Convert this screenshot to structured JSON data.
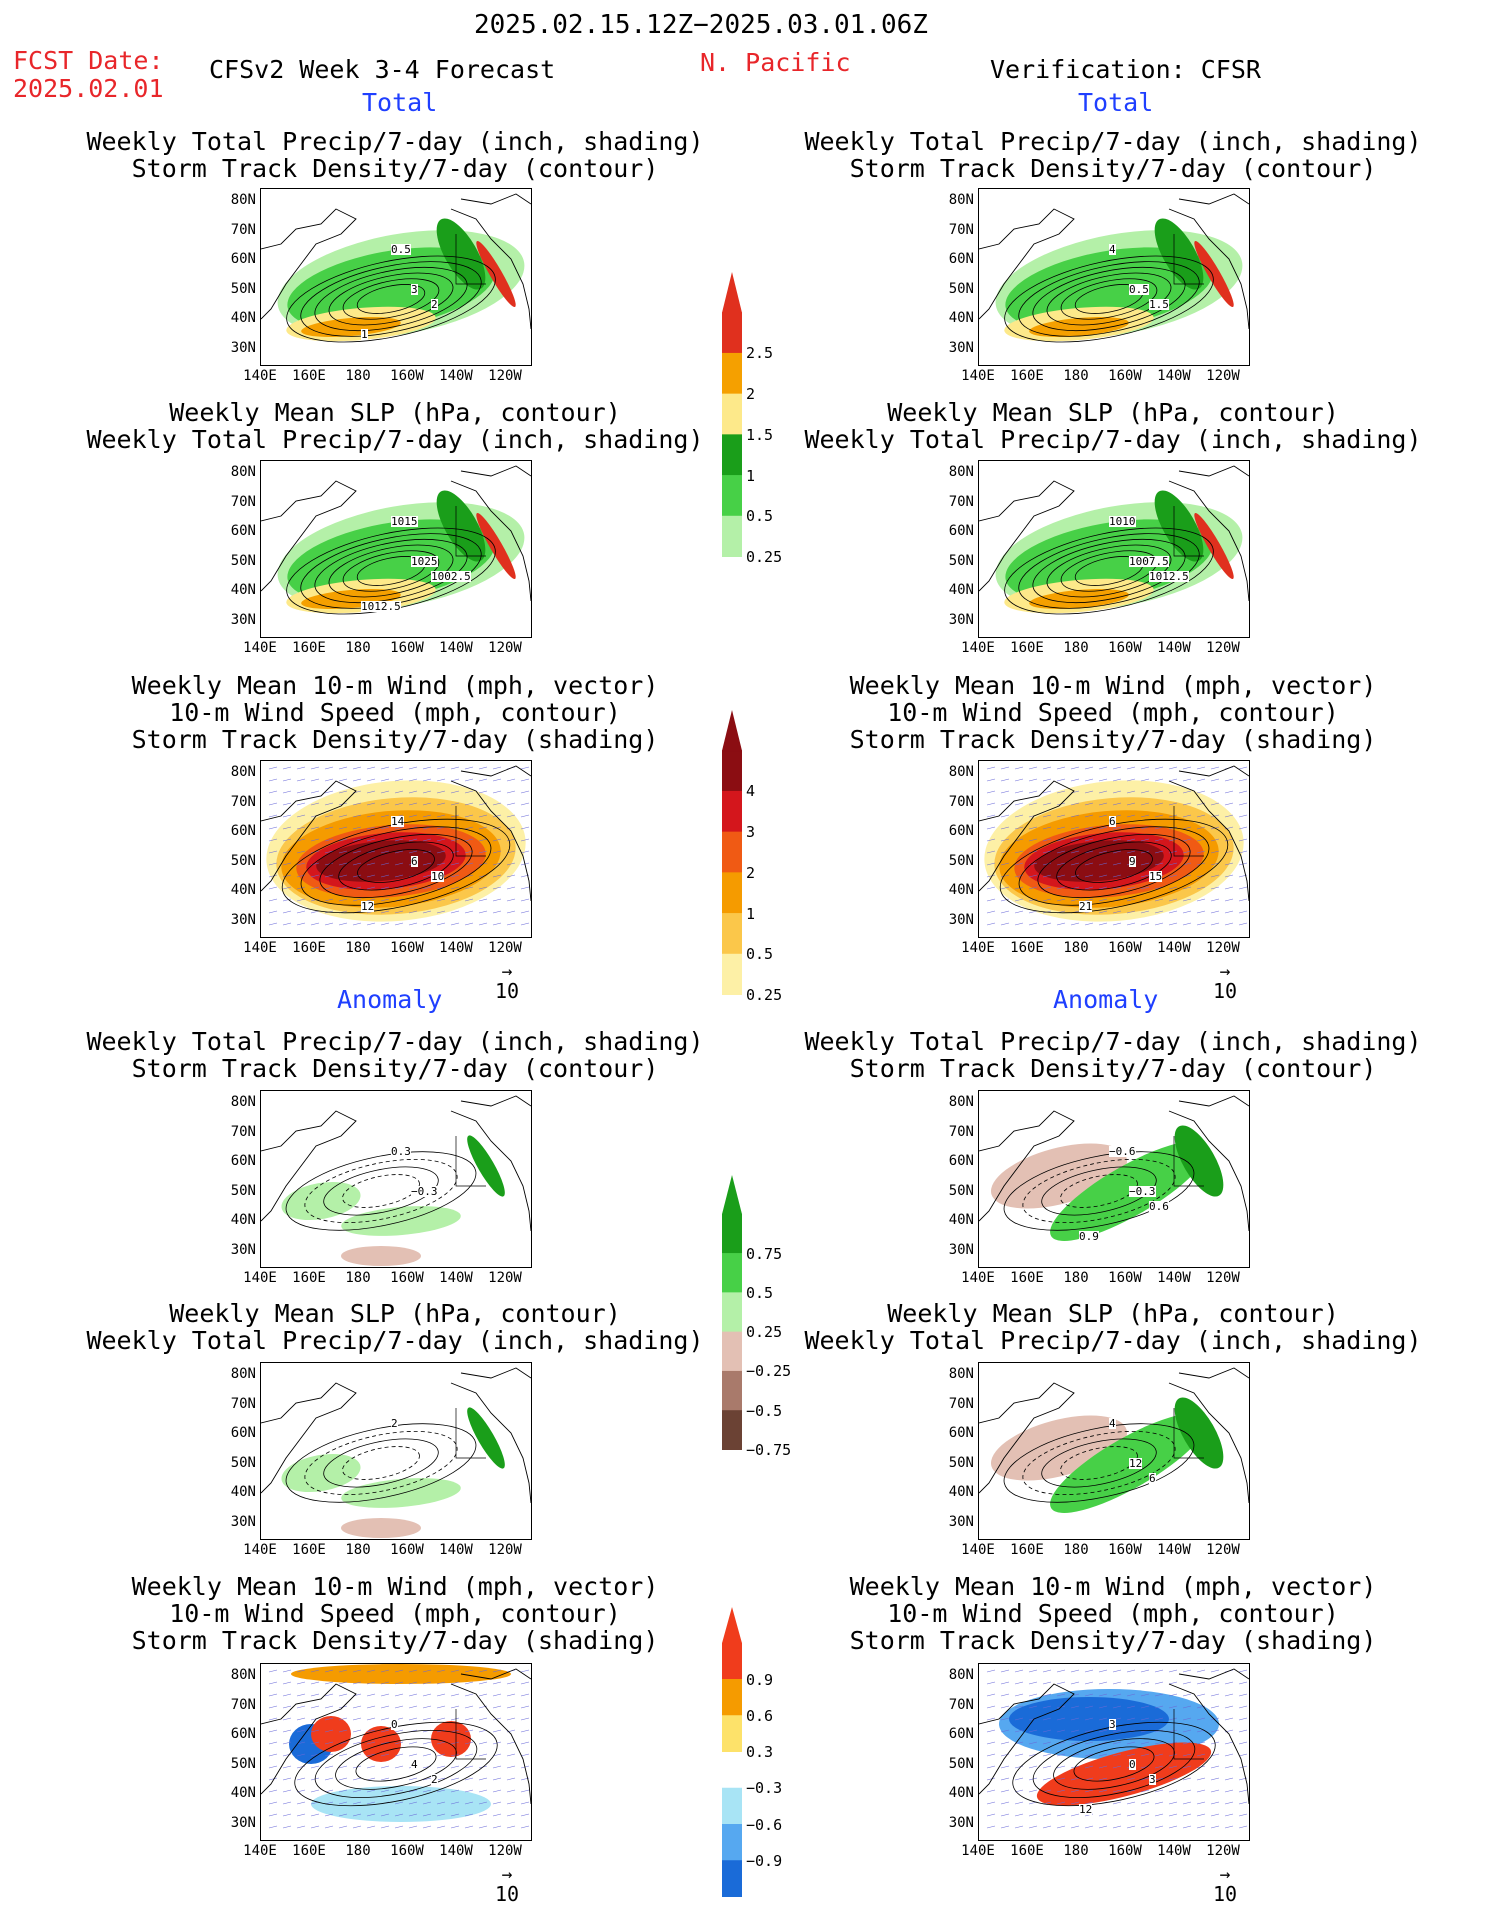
{
  "header": {
    "date_range": "2025.02.15.12Z−2025.03.01.06Z",
    "fcst_label": "FCST Date:",
    "fcst_date": "2025.02.01",
    "model_title": "CFSv2 Week 3-4 Forecast",
    "region": "N. Pacific",
    "verification": "Verification: CFSR"
  },
  "sections": {
    "total": "Total",
    "anomaly": "Anomaly"
  },
  "panel_titles": {
    "precip_storm": [
      "Weekly Total Precip/7-day (inch, shading)",
      "Storm Track Density/7-day (contour)"
    ],
    "slp_precip": [
      "Weekly Mean SLP (hPa, contour)",
      "Weekly Total Precip/7-day (inch, shading)"
    ],
    "wind_storm": [
      "Weekly Mean 10-m Wind (mph, vector)",
      "10-m Wind Speed (mph, contour)",
      "Storm Track Density/7-day (shading)"
    ]
  },
  "axes": {
    "lat": [
      "80N",
      "70N",
      "60N",
      "50N",
      "40N",
      "30N"
    ],
    "lon": [
      "140E",
      "160E",
      "180",
      "160W",
      "140W",
      "120W"
    ]
  },
  "vector_ref": "10",
  "colorbars": {
    "precip_total": {
      "labels": [
        "2.5",
        "2",
        "1.5",
        "1",
        "0.5",
        "0.25"
      ],
      "colors": [
        "#e0301e",
        "#f5a000",
        "#fde98a",
        "#1a9e1a",
        "#47d047",
        "#b4f0a8"
      ]
    },
    "storm_total": {
      "labels": [
        "4",
        "3",
        "2",
        "1",
        "0.5",
        "0.25"
      ],
      "colors": [
        "#8b0d12",
        "#d4161c",
        "#f05a14",
        "#f59b00",
        "#fbc74a",
        "#fdf0a6"
      ]
    },
    "precip_anom": {
      "labels": [
        "0.75",
        "0.5",
        "0.25",
        "−0.25",
        "−0.5",
        "−0.75"
      ],
      "colors": [
        "#1a9e1a",
        "#47d047",
        "#b4f0a8",
        "#e3c0b4",
        "#a97a6b",
        "#6b4234"
      ]
    },
    "storm_anom": {
      "labels": [
        "0.9",
        "0.6",
        "0.3",
        "−0.3",
        "−0.6",
        "−0.9"
      ],
      "colors": [
        "#f03c1c",
        "#f59b00",
        "#fde26a",
        "#ffffff",
        "#a8e4f5",
        "#56a8f0",
        "#1a6bd8"
      ]
    }
  },
  "map_labels": {
    "l1": [
      "0.5",
      "3",
      "2",
      "1"
    ],
    "r1": [
      "4",
      "0.5",
      "1.5"
    ],
    "l2": [
      "1015",
      "1025",
      "1002.5",
      "1012.5"
    ],
    "r2": [
      "1010",
      "1007.5",
      "1012.5"
    ],
    "l3": [
      "14",
      "6",
      "10",
      "12"
    ],
    "r3": [
      "6",
      "9",
      "15",
      "21"
    ],
    "l4": [
      "0.3",
      "−0.3"
    ],
    "r4": [
      "−0.6",
      "−0.3",
      "0.6",
      "0.9"
    ],
    "l5": [
      "2"
    ],
    "r5": [
      "4",
      "12",
      "6"
    ],
    "l6": [
      "0",
      "4",
      "2"
    ],
    "r6": [
      "3",
      "0",
      "3",
      "12"
    ]
  }
}
